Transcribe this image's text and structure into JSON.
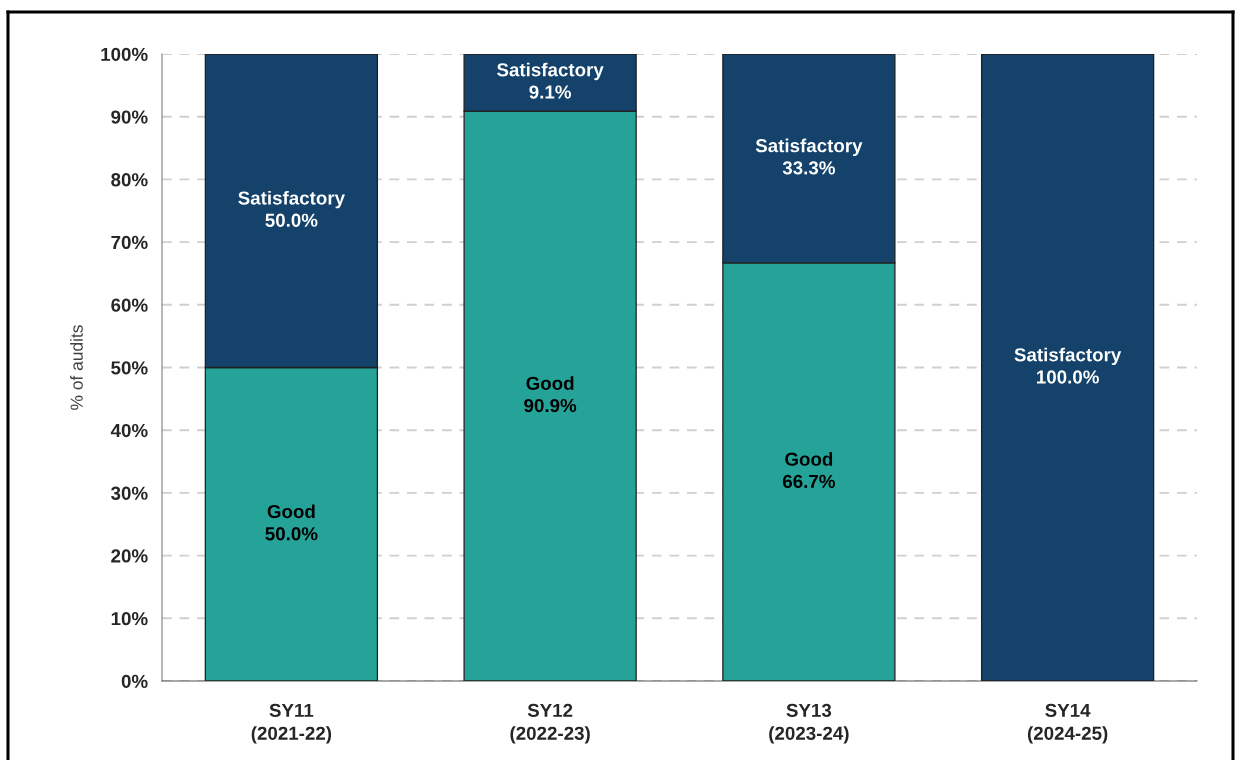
{
  "chart_data": {
    "type": "bar",
    "stacked": true,
    "ylabel": "% of audits",
    "categories": [
      "SY11\n(2021-22)",
      "SY12\n(2022-23)",
      "SY13\n(2023-24)",
      "SY14\n(2024-25)"
    ],
    "series": [
      {
        "name": "Good",
        "color": "#26a398",
        "values": [
          50.0,
          90.9,
          66.7,
          0
        ],
        "value_labels": [
          "50.0%",
          "90.9%",
          "66.7%",
          null
        ]
      },
      {
        "name": "Satisfactory",
        "color": "#14426b",
        "values": [
          50.0,
          9.1,
          33.3,
          100.0
        ],
        "value_labels": [
          "50.0%",
          "9.1%",
          "33.3%",
          "100.0%"
        ]
      }
    ],
    "ylim": [
      0,
      100
    ],
    "yticks": [
      {
        "value": 0,
        "label": "0%"
      },
      {
        "value": 10,
        "label": "10%"
      },
      {
        "value": 20,
        "label": "20%"
      },
      {
        "value": 30,
        "label": "30%"
      },
      {
        "value": 40,
        "label": "40%"
      },
      {
        "value": 50,
        "label": "50%"
      },
      {
        "value": 60,
        "label": "60%"
      },
      {
        "value": 70,
        "label": "70%"
      },
      {
        "value": 80,
        "label": "80%"
      },
      {
        "value": 90,
        "label": "90%"
      },
      {
        "value": 100,
        "label": "100%"
      }
    ],
    "grid": "y",
    "legend": false
  }
}
